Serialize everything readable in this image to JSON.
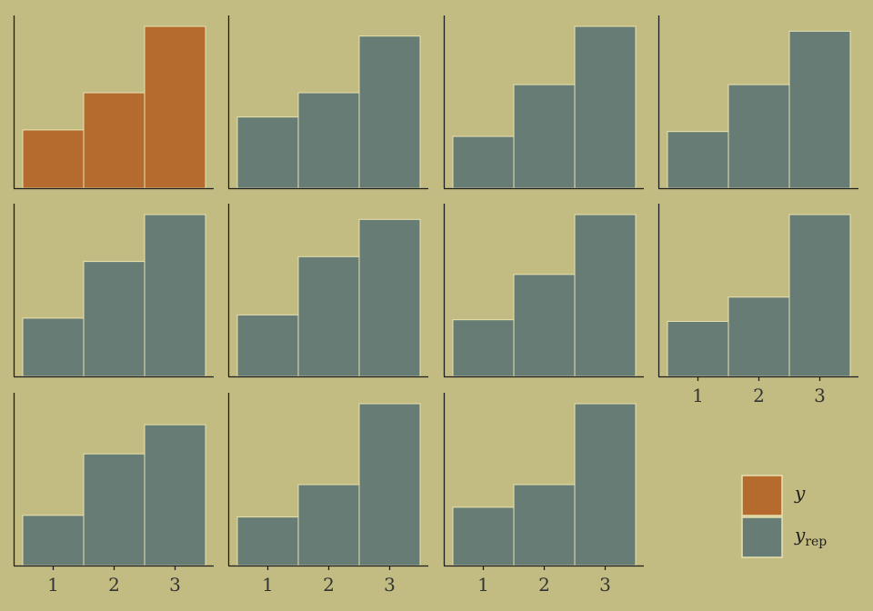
{
  "colors": {
    "background": "#c2bb82",
    "observed": "#b56a2e",
    "replicated": "#667c74",
    "bar_outline": "#e8e2b0",
    "axis": "#1e1e1e",
    "tick_text": "#333333"
  },
  "chart_data": {
    "type": "bar",
    "categories": [
      "1",
      "2",
      "3"
    ],
    "ylim": [
      0,
      1
    ],
    "grid": false,
    "legend_position": "bottom-right",
    "panels": [
      {
        "series": "y",
        "values": [
          0.36,
          0.59,
          1.0
        ]
      },
      {
        "series": "y_rep",
        "values": [
          0.44,
          0.59,
          0.94
        ]
      },
      {
        "series": "y_rep",
        "values": [
          0.32,
          0.64,
          1.0
        ]
      },
      {
        "series": "y_rep",
        "values": [
          0.35,
          0.64,
          0.97
        ]
      },
      {
        "series": "y_rep",
        "values": [
          0.36,
          0.71,
          1.0
        ]
      },
      {
        "series": "y_rep",
        "values": [
          0.38,
          0.74,
          0.97
        ]
      },
      {
        "series": "y_rep",
        "values": [
          0.35,
          0.63,
          1.0
        ]
      },
      {
        "series": "y_rep",
        "values": [
          0.34,
          0.49,
          1.0
        ]
      },
      {
        "series": "y_rep",
        "values": [
          0.31,
          0.69,
          0.87
        ]
      },
      {
        "series": "y_rep",
        "values": [
          0.3,
          0.5,
          1.0
        ]
      },
      {
        "series": "y_rep",
        "values": [
          0.36,
          0.5,
          1.0
        ]
      }
    ],
    "legend": [
      {
        "key": "y",
        "label": "y",
        "subscript": ""
      },
      {
        "key": "y_rep",
        "label": "y",
        "subscript": "rep"
      }
    ]
  }
}
